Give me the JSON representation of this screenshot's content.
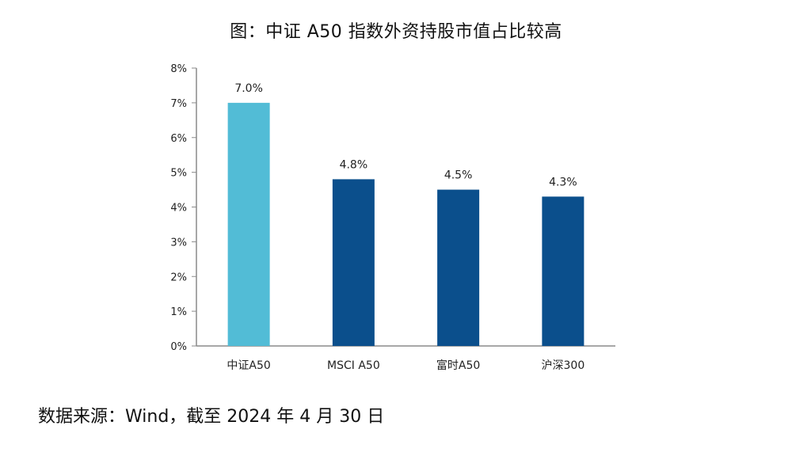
{
  "title": "图：中证 A50 指数外资持股市值占比较高",
  "source": "数据来源：Wind，截至 2024 年 4 月 30 日",
  "chart_data": {
    "type": "bar",
    "categories": [
      "中证A50",
      "MSCI A50",
      "富时A50",
      "沪深300"
    ],
    "values": [
      7.0,
      4.8,
      4.5,
      4.3
    ],
    "data_labels": [
      "7.0%",
      "4.8%",
      "4.5%",
      "4.3%"
    ],
    "bar_colors": [
      "#52BCD6",
      "#0B4F8C",
      "#0B4F8C",
      "#0B4F8C"
    ],
    "title": "图：中证 A50 指数外资持股市值占比较高",
    "xlabel": "",
    "ylabel": "",
    "ylim": [
      0,
      8
    ],
    "yticks": [
      0,
      1,
      2,
      3,
      4,
      5,
      6,
      7,
      8
    ],
    "ytick_labels": [
      "0%",
      "1%",
      "2%",
      "3%",
      "4%",
      "5%",
      "6%",
      "7%",
      "8%"
    ],
    "grid": false,
    "legend": "none"
  }
}
